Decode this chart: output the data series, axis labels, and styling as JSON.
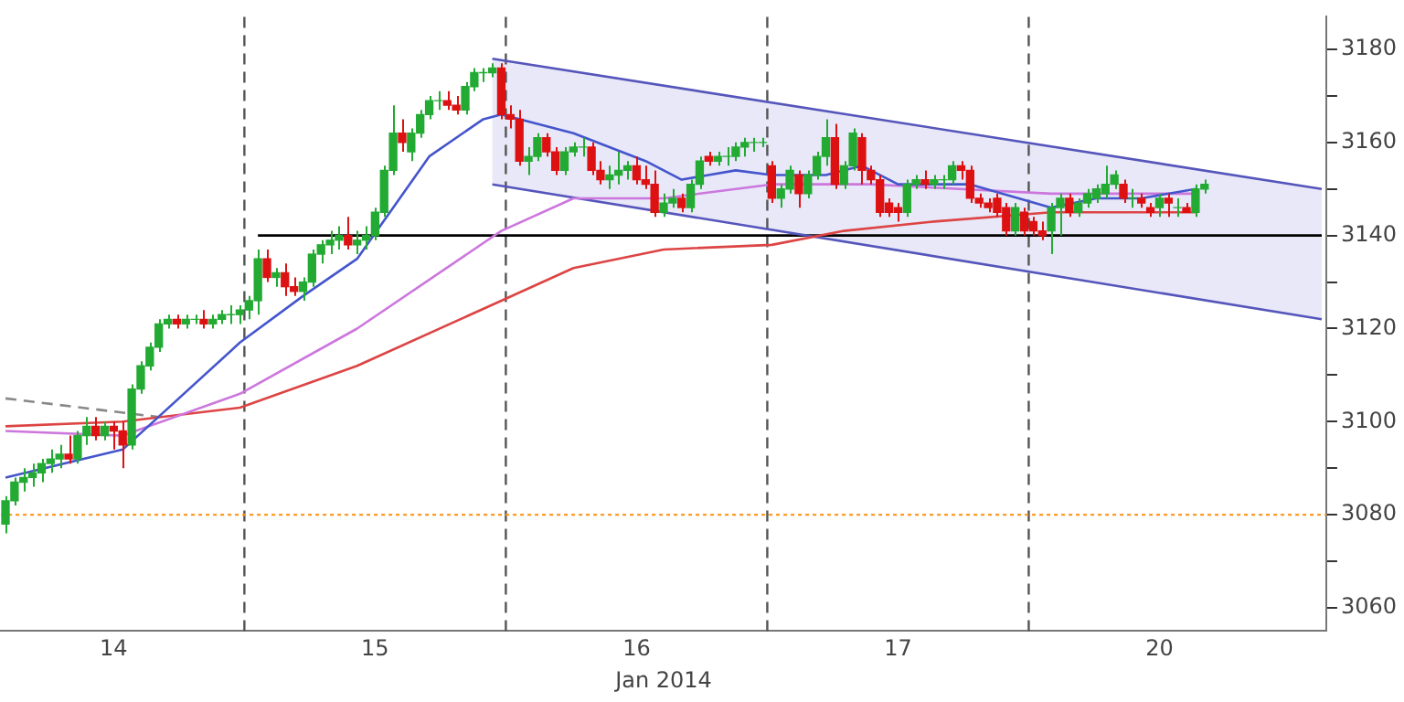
{
  "chart_data": {
    "type": "candlestick",
    "xlabel": "Jan 2014",
    "categories": [
      null,
      null,
      null,
      null,
      null,
      null,
      null,
      null,
      null,
      null,
      null,
      null,
      "14",
      null,
      null,
      null,
      null,
      null,
      null,
      null,
      null,
      null,
      null,
      null,
      null,
      null,
      null,
      null,
      null,
      null,
      null,
      null,
      null,
      null,
      null,
      null,
      null,
      null,
      null,
      null,
      null,
      "15",
      null,
      null,
      null,
      null,
      null,
      null,
      null,
      null,
      null,
      null,
      null,
      null,
      null,
      null,
      null,
      null,
      null,
      null,
      null,
      null,
      null,
      null,
      null,
      null,
      null,
      null,
      null,
      null,
      "16",
      null,
      null,
      null,
      null,
      null,
      null,
      null,
      null,
      null,
      null,
      null,
      null,
      null,
      null,
      null,
      null,
      null,
      null,
      null,
      null,
      null,
      null,
      null,
      null,
      null,
      null,
      null,
      null,
      "17",
      null,
      null,
      null,
      null,
      null,
      null,
      null,
      null,
      null,
      null,
      null,
      null,
      null,
      null,
      null,
      null,
      null,
      null,
      null,
      null,
      null,
      null,
      null,
      null,
      null,
      null,
      null,
      null,
      "20",
      null,
      null,
      null,
      null,
      null,
      null,
      null,
      null,
      null,
      null,
      null,
      null,
      null,
      null,
      null,
      null,
      null,
      null
    ],
    "ohlc": [
      [
        3078,
        3084,
        3076,
        3083
      ],
      [
        3083,
        3088,
        3082,
        3087
      ],
      [
        3087,
        3090,
        3085,
        3088
      ],
      [
        3088,
        3091,
        3086,
        3089
      ],
      [
        3089,
        3092,
        3087,
        3091
      ],
      [
        3091,
        3094,
        3089,
        3092
      ],
      [
        3092,
        3095,
        3090,
        3093
      ],
      [
        3093,
        3097,
        3091,
        3092
      ],
      [
        3092,
        3098,
        3091,
        3097
      ],
      [
        3097,
        3101,
        3095,
        3099
      ],
      [
        3099,
        3101,
        3096,
        3097
      ],
      [
        3097,
        3100,
        3096,
        3099
      ],
      [
        3099,
        3100,
        3094,
        3098
      ],
      [
        3098,
        3100,
        3090,
        3095
      ],
      [
        3095,
        3108,
        3094,
        3107
      ],
      [
        3107,
        3113,
        3106,
        3112
      ],
      [
        3112,
        3117,
        3111,
        3116
      ],
      [
        3116,
        3122,
        3115,
        3121
      ],
      [
        3121,
        3123,
        3120,
        3122
      ],
      [
        3122,
        3123,
        3120,
        3121
      ],
      [
        3121,
        3123,
        3120,
        3122
      ],
      [
        3122,
        3123,
        3121,
        3122
      ],
      [
        3122,
        3124,
        3120,
        3121
      ],
      [
        3121,
        3123,
        3120,
        3122
      ],
      [
        3122,
        3124,
        3121,
        3123
      ],
      [
        3123,
        3125,
        3121,
        3123
      ],
      [
        3123,
        3125,
        3121,
        3124
      ],
      [
        3124,
        3127,
        3122,
        3126
      ],
      [
        3126,
        3137,
        3123,
        3135
      ],
      [
        3135,
        3137,
        3130,
        3131
      ],
      [
        3131,
        3133,
        3129,
        3132
      ],
      [
        3132,
        3134,
        3127,
        3129
      ],
      [
        3129,
        3131,
        3127,
        3128
      ],
      [
        3128,
        3131,
        3126,
        3130
      ],
      [
        3130,
        3137,
        3129,
        3136
      ],
      [
        3136,
        3139,
        3134,
        3138
      ],
      [
        3138,
        3141,
        3136,
        3139
      ],
      [
        3139,
        3142,
        3137,
        3140
      ],
      [
        3140,
        3144,
        3137,
        3138
      ],
      [
        3138,
        3141,
        3136,
        3139
      ],
      [
        3139,
        3142,
        3137,
        3140
      ],
      [
        3140,
        3146,
        3139,
        3145
      ],
      [
        3145,
        3155,
        3144,
        3154
      ],
      [
        3154,
        3168,
        3153,
        3162
      ],
      [
        3162,
        3165,
        3158,
        3160
      ],
      [
        3158,
        3163,
        3156,
        3162
      ],
      [
        3162,
        3167,
        3161,
        3166
      ],
      [
        3166,
        3170,
        3165,
        3169
      ],
      [
        3169,
        3171,
        3167,
        3169
      ],
      [
        3169,
        3171,
        3167,
        3168
      ],
      [
        3168,
        3170,
        3166,
        3167
      ],
      [
        3167,
        3173,
        3166,
        3172
      ],
      [
        3172,
        3176,
        3171,
        3175
      ],
      [
        3175,
        3176,
        3173,
        3175
      ],
      [
        3175,
        3177,
        3174,
        3176
      ],
      [
        3176,
        3177,
        3165,
        3166
      ],
      [
        3166,
        3168,
        3163,
        3165
      ],
      [
        3165,
        3167,
        3155,
        3156
      ],
      [
        3156,
        3159,
        3153,
        3157
      ],
      [
        3157,
        3162,
        3156,
        3161
      ],
      [
        3161,
        3162,
        3157,
        3158
      ],
      [
        3158,
        3159,
        3153,
        3154
      ],
      [
        3154,
        3159,
        3153,
        3158
      ],
      [
        3158,
        3160,
        3157,
        3159
      ],
      [
        3159,
        3161,
        3157,
        3159
      ],
      [
        3159,
        3160,
        3153,
        3154
      ],
      [
        3154,
        3156,
        3151,
        3152
      ],
      [
        3152,
        3155,
        3150,
        3153
      ],
      [
        3153,
        3158,
        3151,
        3154
      ],
      [
        3154,
        3156,
        3152,
        3155
      ],
      [
        3155,
        3157,
        3151,
        3152
      ],
      [
        3152,
        3155,
        3150,
        3151
      ],
      [
        3151,
        3154,
        3144,
        3145
      ],
      [
        3145,
        3149,
        3144,
        3147
      ],
      [
        3147,
        3150,
        3146,
        3148
      ],
      [
        3148,
        3149,
        3145,
        3146
      ],
      [
        3146,
        3152,
        3145,
        3151
      ],
      [
        3151,
        3157,
        3150,
        3156
      ],
      [
        3157,
        3158,
        3155,
        3156
      ],
      [
        3156,
        3158,
        3155,
        3157
      ],
      [
        3157,
        3159,
        3155,
        3157
      ],
      [
        3157,
        3160,
        3156,
        3159
      ],
      [
        3159,
        3161,
        3157,
        3160
      ],
      [
        3160,
        3161,
        3158,
        3160
      ],
      [
        3160,
        3161,
        3159,
        3160
      ],
      [
        3155,
        3156,
        3147,
        3148
      ],
      [
        3148,
        3151,
        3146,
        3150
      ],
      [
        3150,
        3155,
        3149,
        3154
      ],
      [
        3153,
        3154,
        3146,
        3149
      ],
      [
        3149,
        3154,
        3148,
        3153
      ],
      [
        3153,
        3158,
        3152,
        3157
      ],
      [
        3157,
        3165,
        3155,
        3161
      ],
      [
        3161,
        3164,
        3150,
        3151
      ],
      [
        3151,
        3156,
        3150,
        3155
      ],
      [
        3155,
        3163,
        3154,
        3162
      ],
      [
        3161,
        3162,
        3151,
        3154
      ],
      [
        3154,
        3155,
        3151,
        3152
      ],
      [
        3152,
        3153,
        3144,
        3145
      ],
      [
        3147,
        3148,
        3144,
        3145
      ],
      [
        3146,
        3147,
        3143,
        3145
      ],
      [
        3145,
        3152,
        3144,
        3151
      ],
      [
        3151,
        3153,
        3150,
        3152
      ],
      [
        3152,
        3154,
        3150,
        3151
      ],
      [
        3151,
        3153,
        3150,
        3152
      ],
      [
        3152,
        3153,
        3150,
        3152
      ],
      [
        3152,
        3156,
        3151,
        3155
      ],
      [
        3155,
        3156,
        3152,
        3154
      ],
      [
        3154,
        3155,
        3147,
        3148
      ],
      [
        3148,
        3149,
        3146,
        3147
      ],
      [
        3147,
        3148,
        3145,
        3146
      ],
      [
        3148,
        3149,
        3144,
        3145
      ],
      [
        3146,
        3147,
        3140,
        3141
      ],
      [
        3141,
        3147,
        3140,
        3146
      ],
      [
        3145,
        3146,
        3140,
        3141
      ],
      [
        3143,
        3144,
        3140,
        3141
      ],
      [
        3141,
        3143,
        3139,
        3140
      ],
      [
        3141,
        3147,
        3136,
        3146
      ],
      [
        3146,
        3149,
        3140,
        3148
      ],
      [
        3148,
        3149,
        3144,
        3145
      ],
      [
        3145,
        3148,
        3144,
        3147
      ],
      [
        3147,
        3150,
        3146,
        3149
      ],
      [
        3148,
        3151,
        3147,
        3150
      ],
      [
        3149,
        3155,
        3148,
        3151
      ],
      [
        3151,
        3154,
        3150,
        3153
      ],
      [
        3151,
        3152,
        3147,
        3148
      ],
      [
        3148,
        3150,
        3146,
        3148
      ],
      [
        3148,
        3149,
        3146,
        3147
      ],
      [
        3146,
        3147,
        3144,
        3145
      ],
      [
        3146,
        3149,
        3144,
        3148
      ],
      [
        3148,
        3149,
        3144,
        3147
      ],
      [
        3146,
        3148,
        3144,
        3146
      ],
      [
        3146,
        3147,
        3145,
        3145
      ],
      [
        3145,
        3151,
        3144,
        3150
      ],
      [
        3150,
        3152,
        3149,
        3151
      ],
      null,
      null,
      null,
      null,
      null,
      null,
      null,
      null,
      null,
      null,
      null,
      null,
      null
    ],
    "series": [
      {
        "type": "line",
        "color": "#4455cc",
        "values": [
          3088,
          null,
          null,
          null,
          null,
          null,
          null,
          null,
          null,
          null,
          null,
          null,
          null,
          3094,
          null,
          null,
          null,
          null,
          null,
          null,
          null,
          null,
          null,
          null,
          null,
          null,
          3117,
          null,
          null,
          null,
          null,
          null,
          null,
          3127,
          null,
          null,
          null,
          null,
          null,
          3135,
          null,
          null,
          null,
          3146,
          null,
          null,
          null,
          3157,
          null,
          null,
          null,
          null,
          null,
          3165,
          null,
          3166,
          null,
          null,
          null,
          null,
          null,
          null,
          null,
          3162,
          null,
          null,
          null,
          null,
          null,
          null,
          null,
          3156,
          null,
          null,
          null,
          3152,
          null,
          null,
          null,
          null,
          null,
          3154,
          null,
          null,
          null,
          3153,
          null,
          null,
          null,
          null,
          null,
          3153,
          null,
          null,
          null,
          3155,
          null,
          null,
          null,
          3151,
          null,
          null,
          null,
          null,
          null,
          null,
          null,
          3151,
          null,
          null,
          null,
          null,
          null,
          null,
          null,
          null,
          3146,
          null,
          null,
          null,
          null,
          3148,
          null,
          null,
          null,
          null,
          3148,
          null,
          null,
          null,
          null,
          null,
          3150,
          null,
          null,
          null,
          null,
          null,
          null,
          null,
          null,
          null,
          null,
          null,
          null,
          null,
          null
        ]
      },
      {
        "type": "line",
        "color": "#cc77dd",
        "values": [
          3098,
          null,
          null,
          null,
          null,
          null,
          null,
          null,
          null,
          null,
          null,
          null,
          null,
          3097,
          null,
          null,
          null,
          null,
          null,
          null,
          null,
          null,
          null,
          null,
          null,
          null,
          3106,
          null,
          null,
          null,
          null,
          null,
          null,
          null,
          null,
          null,
          null,
          null,
          null,
          3120,
          null,
          null,
          null,
          null,
          null,
          null,
          null,
          null,
          null,
          null,
          null,
          null,
          null,
          null,
          null,
          3141,
          null,
          null,
          null,
          null,
          null,
          null,
          null,
          3148,
          null,
          null,
          null,
          null,
          null,
          null,
          null,
          null,
          null,
          3148,
          null,
          null,
          null,
          null,
          null,
          null,
          null,
          null,
          null,
          null,
          null,
          3151,
          null,
          null,
          null,
          null,
          null,
          null,
          null,
          null,
          null,
          null,
          3151,
          null,
          null,
          null,
          null,
          null,
          null,
          null,
          null,
          null,
          null,
          null,
          null,
          null,
          null,
          null,
          null,
          null,
          null,
          null,
          3149,
          null,
          null,
          null,
          null,
          null,
          null,
          null,
          null,
          null,
          null,
          null,
          null,
          null,
          null,
          null,
          3149,
          null,
          null,
          null,
          null,
          null,
          null,
          null,
          null,
          null,
          null,
          null,
          null,
          null,
          null
        ]
      },
      {
        "type": "line",
        "color": "#dd4444",
        "values": [
          3099,
          null,
          null,
          null,
          null,
          null,
          null,
          null,
          null,
          null,
          null,
          null,
          null,
          3100,
          null,
          null,
          null,
          null,
          null,
          null,
          null,
          null,
          null,
          null,
          null,
          null,
          3103,
          null,
          null,
          null,
          null,
          null,
          null,
          null,
          null,
          null,
          null,
          null,
          null,
          3112,
          null,
          null,
          null,
          null,
          null,
          null,
          null,
          null,
          null,
          null,
          null,
          null,
          null,
          null,
          null,
          3126,
          null,
          null,
          null,
          null,
          null,
          null,
          null,
          3133,
          null,
          null,
          null,
          null,
          null,
          null,
          null,
          null,
          null,
          3137,
          null,
          null,
          null,
          null,
          null,
          null,
          null,
          null,
          null,
          null,
          null,
          3138,
          null,
          null,
          null,
          null,
          null,
          null,
          null,
          3141,
          null,
          null,
          null,
          null,
          null,
          null,
          null,
          null,
          null,
          3143,
          null,
          null,
          null,
          null,
          null,
          null,
          null,
          null,
          null,
          null,
          null,
          null,
          3145,
          null,
          null,
          null,
          null,
          null,
          null,
          null,
          null,
          null,
          null,
          null,
          null,
          null,
          null,
          null,
          3145,
          null,
          null,
          null,
          null,
          null,
          null,
          null,
          null,
          null,
          null,
          null,
          null,
          null,
          null
        ]
      },
      {
        "type": "line",
        "color": "#5555bb",
        "values": [
          null,
          null,
          null,
          null,
          null,
          null,
          null,
          null,
          null,
          null,
          null,
          null,
          null,
          null,
          null,
          null,
          null,
          null,
          null,
          null,
          null,
          null,
          null,
          null,
          null,
          null,
          null,
          null,
          null,
          null,
          null,
          null,
          null,
          null,
          null,
          null,
          null,
          null,
          null,
          null,
          null,
          null,
          null,
          null,
          null,
          null,
          null,
          null,
          null,
          null,
          null,
          null,
          null,
          null,
          3178,
          null,
          null,
          null,
          null,
          null,
          null,
          null,
          null,
          null,
          null,
          null,
          null,
          null,
          null,
          null,
          null,
          null,
          null,
          null,
          null,
          null,
          null,
          null,
          null,
          null,
          null,
          null,
          null,
          null,
          null,
          null,
          null,
          null,
          null,
          null,
          null,
          null,
          null,
          null,
          null,
          null,
          null,
          null,
          null,
          null,
          null,
          null,
          null,
          null,
          null,
          null,
          null,
          null,
          null,
          null,
          null,
          null,
          null,
          null,
          null,
          null,
          null,
          null,
          null,
          null,
          null,
          null,
          null,
          null,
          null,
          null,
          null,
          null,
          null,
          null,
          null,
          null,
          null,
          null,
          null,
          null,
          null,
          null,
          null,
          null,
          null,
          null,
          null,
          null,
          null,
          null,
          3150
        ],
        "upper": [
          null,
          null,
          null,
          null,
          null,
          null,
          null,
          null,
          null,
          null,
          null,
          null,
          null,
          null,
          null,
          null,
          null,
          null,
          null,
          null,
          null,
          null,
          null,
          null,
          null,
          null,
          null,
          null,
          null,
          null,
          null,
          null,
          null,
          null,
          null,
          null,
          null,
          null,
          null,
          null,
          null,
          null,
          null,
          null,
          null,
          null,
          null,
          null,
          null,
          null,
          null,
          null,
          null,
          null,
          3178,
          null,
          null,
          null,
          null,
          null,
          null,
          null,
          null,
          null,
          null,
          null,
          null,
          null,
          null,
          null,
          null,
          null,
          null,
          null,
          null,
          null,
          null,
          null,
          null,
          null,
          null,
          null,
          null,
          null,
          null,
          null,
          null,
          null,
          null,
          null,
          null,
          null,
          null,
          null,
          null,
          null,
          null,
          null,
          null,
          null,
          null,
          null,
          null,
          null,
          null,
          null,
          null,
          null,
          null,
          null,
          null,
          null,
          null,
          null,
          null,
          null,
          null,
          null,
          null,
          null,
          null,
          null,
          null,
          null,
          null,
          null,
          null,
          null,
          null,
          null,
          null,
          null,
          null,
          null,
          null,
          null,
          null,
          null,
          null,
          null,
          null,
          null,
          null,
          null,
          null,
          null,
          3150
        ],
        "lower": [
          null,
          null,
          null,
          null,
          null,
          null,
          null,
          null,
          null,
          null,
          null,
          null,
          null,
          null,
          null,
          null,
          null,
          null,
          null,
          null,
          null,
          null,
          null,
          null,
          null,
          null,
          null,
          null,
          null,
          null,
          null,
          null,
          null,
          null,
          null,
          null,
          null,
          null,
          null,
          null,
          null,
          null,
          null,
          null,
          null,
          null,
          null,
          null,
          null,
          null,
          null,
          null,
          null,
          null,
          3151,
          null,
          null,
          null,
          null,
          null,
          null,
          null,
          null,
          null,
          null,
          null,
          null,
          null,
          null,
          null,
          null,
          null,
          null,
          null,
          null,
          null,
          null,
          null,
          null,
          null,
          null,
          null,
          null,
          null,
          null,
          null,
          null,
          null,
          null,
          null,
          null,
          null,
          null,
          null,
          null,
          null,
          null,
          null,
          null,
          null,
          null,
          null,
          null,
          null,
          null,
          null,
          null,
          null,
          null,
          null,
          null,
          null,
          null,
          null,
          null,
          null,
          null,
          null,
          null,
          null,
          null,
          null,
          null,
          null,
          null,
          null,
          null,
          null,
          null,
          null,
          null,
          null,
          null,
          null,
          null,
          null,
          null,
          null,
          null,
          null,
          null,
          null,
          null,
          null,
          null,
          null,
          3122
        ]
      },
      {
        "type": "line",
        "color": "#5555bb",
        "values": [
          null,
          null,
          null,
          null,
          null,
          null,
          null,
          null,
          null,
          null,
          null,
          null,
          null,
          null,
          null,
          null,
          null,
          null,
          null,
          null,
          null,
          null,
          null,
          null,
          null,
          null,
          null,
          null,
          null,
          null,
          null,
          null,
          null,
          null,
          null,
          null,
          null,
          null,
          null,
          null,
          null,
          null,
          null,
          null,
          null,
          null,
          null,
          null,
          null,
          null,
          null,
          null,
          null,
          null,
          3151,
          null,
          null,
          null,
          null,
          null,
          null,
          null,
          null,
          null,
          null,
          null,
          null,
          null,
          null,
          null,
          null,
          null,
          null,
          null,
          null,
          null,
          null,
          null,
          null,
          null,
          null,
          null,
          null,
          null,
          null,
          null,
          null,
          null,
          null,
          null,
          null,
          null,
          null,
          null,
          null,
          null,
          null,
          null,
          null,
          null,
          null,
          null,
          null,
          null,
          null,
          null,
          null,
          null,
          null,
          null,
          null,
          null,
          null,
          null,
          null,
          null,
          null,
          null,
          null,
          null,
          null,
          null,
          null,
          null,
          null,
          null,
          null,
          null,
          null,
          null,
          null,
          null,
          null,
          null,
          null,
          null,
          null,
          null,
          null,
          null,
          null,
          null,
          null,
          null,
          null,
          null,
          3122
        ]
      },
      {
        "type": "line",
        "color": "#000000",
        "values": [
          null,
          null,
          null,
          null,
          null,
          null,
          null,
          null,
          null,
          null,
          null,
          null,
          null,
          null,
          null,
          null,
          null,
          null,
          null,
          null,
          null,
          null,
          null,
          null,
          null,
          null,
          null,
          null,
          3140,
          null,
          null,
          null,
          null,
          null,
          null,
          null,
          null,
          null,
          null,
          null,
          null,
          null,
          null,
          null,
          null,
          null,
          null,
          null,
          null,
          null,
          null,
          null,
          null,
          null,
          null,
          null,
          null,
          null,
          null,
          null,
          null,
          null,
          null,
          null,
          null,
          null,
          null,
          null,
          null,
          null,
          null,
          null,
          null,
          null,
          null,
          null,
          null,
          null,
          null,
          null,
          null,
          null,
          null,
          null,
          null,
          null,
          null,
          null,
          null,
          null,
          null,
          null,
          null,
          null,
          null,
          null,
          null,
          null,
          null,
          null,
          null,
          null,
          null,
          null,
          null,
          null,
          null,
          null,
          null,
          null,
          null,
          null,
          null,
          null,
          null,
          null,
          null,
          null,
          null,
          null,
          null,
          null,
          null,
          null,
          null,
          null,
          null,
          null,
          null,
          null,
          null,
          null,
          null,
          null,
          null,
          null,
          null,
          null,
          null,
          null,
          null,
          null,
          null,
          null,
          null,
          null,
          3140
        ]
      },
      {
        "type": "line",
        "color": "#888888",
        "line_style": "dashed",
        "values": [
          3105,
          null,
          null,
          null,
          null,
          null,
          null,
          null,
          null,
          null,
          null,
          null,
          null,
          null,
          null,
          null,
          null,
          3101,
          null,
          null,
          null,
          null,
          null,
          null,
          null,
          null,
          null,
          null,
          null,
          null,
          null,
          null,
          null,
          null,
          null,
          null,
          null,
          null,
          null,
          null,
          null,
          null,
          null,
          null,
          null,
          null,
          null,
          null,
          null,
          null,
          null,
          null,
          null,
          null,
          null,
          null,
          null,
          null,
          null,
          null,
          null,
          null,
          null,
          null,
          null,
          null,
          null,
          null,
          null,
          null,
          null,
          null,
          null,
          null,
          null,
          null,
          null,
          null,
          null,
          null,
          null,
          null,
          null,
          null,
          null,
          null,
          null,
          null,
          null,
          null,
          null,
          null,
          null,
          null,
          null,
          null,
          null,
          null,
          null,
          null,
          null,
          null,
          null,
          null,
          null,
          null,
          null,
          null,
          null,
          null,
          null,
          null,
          null,
          null,
          null,
          null,
          null,
          null,
          null,
          null,
          null,
          null,
          null,
          null,
          null,
          null,
          null,
          null,
          null,
          null,
          null,
          null,
          null,
          null,
          null,
          null,
          null,
          null,
          null,
          null,
          null,
          null,
          null,
          null,
          null,
          null,
          null
        ]
      }
    ],
    "ref_lines": [
      {
        "axis": "y",
        "value": 3080,
        "color": "#ff9922",
        "line_style": "dotted"
      }
    ],
    "ylim": [
      3055,
      3187
    ],
    "yticks": [
      3060,
      {
        "value": 3070,
        "label": null
      },
      3080,
      {
        "value": 3090,
        "label": null
      },
      3100,
      {
        "value": 3110,
        "label": null
      },
      3120,
      {
        "value": 3130,
        "label": null
      },
      3140,
      {
        "value": 3150,
        "label": null
      },
      3160,
      {
        "value": 3170,
        "label": null
      },
      3180
    ],
    "grid": "x",
    "marker": "none"
  }
}
